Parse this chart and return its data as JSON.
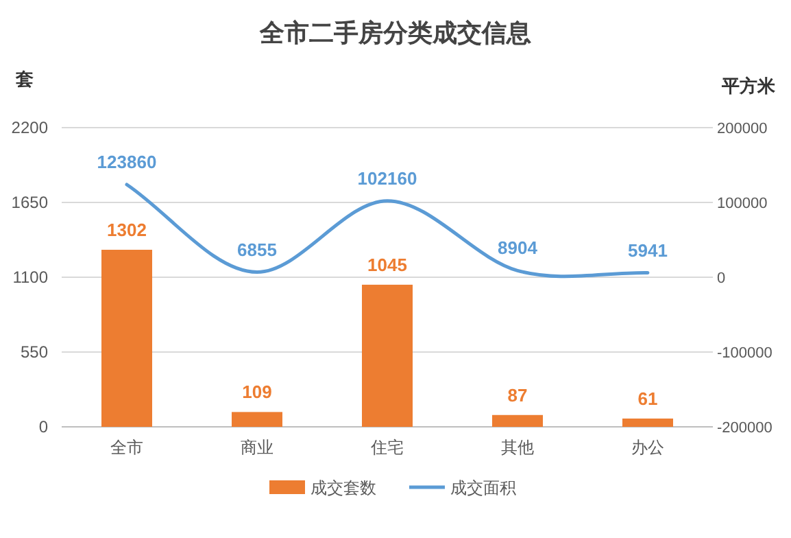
{
  "chart_data": {
    "type": "bar",
    "title": "全市二手房分类成交信息",
    "ylabel": "套",
    "y2label": "平方米",
    "categories": [
      "全市",
      "商业",
      "住宅",
      "其他",
      "办公"
    ],
    "series": [
      {
        "name": "成交套数",
        "color": "#ed7d31",
        "values": [
          1302,
          109,
          1045,
          87,
          61
        ]
      },
      {
        "name": "成交面积",
        "type": "line",
        "axis": "y2",
        "color": "#5b9bd5",
        "values": [
          123860,
          6855,
          102160,
          8904,
          5941
        ]
      }
    ],
    "ylim": [
      0,
      2200
    ],
    "yticks": [
      0,
      550,
      1100,
      1650,
      2200
    ],
    "y2lim": [
      -200000,
      200000
    ],
    "y2ticks": [
      -200000,
      -100000,
      0,
      100000,
      200000
    ],
    "grid": "y",
    "legend": "bottom",
    "data_labels": true
  }
}
